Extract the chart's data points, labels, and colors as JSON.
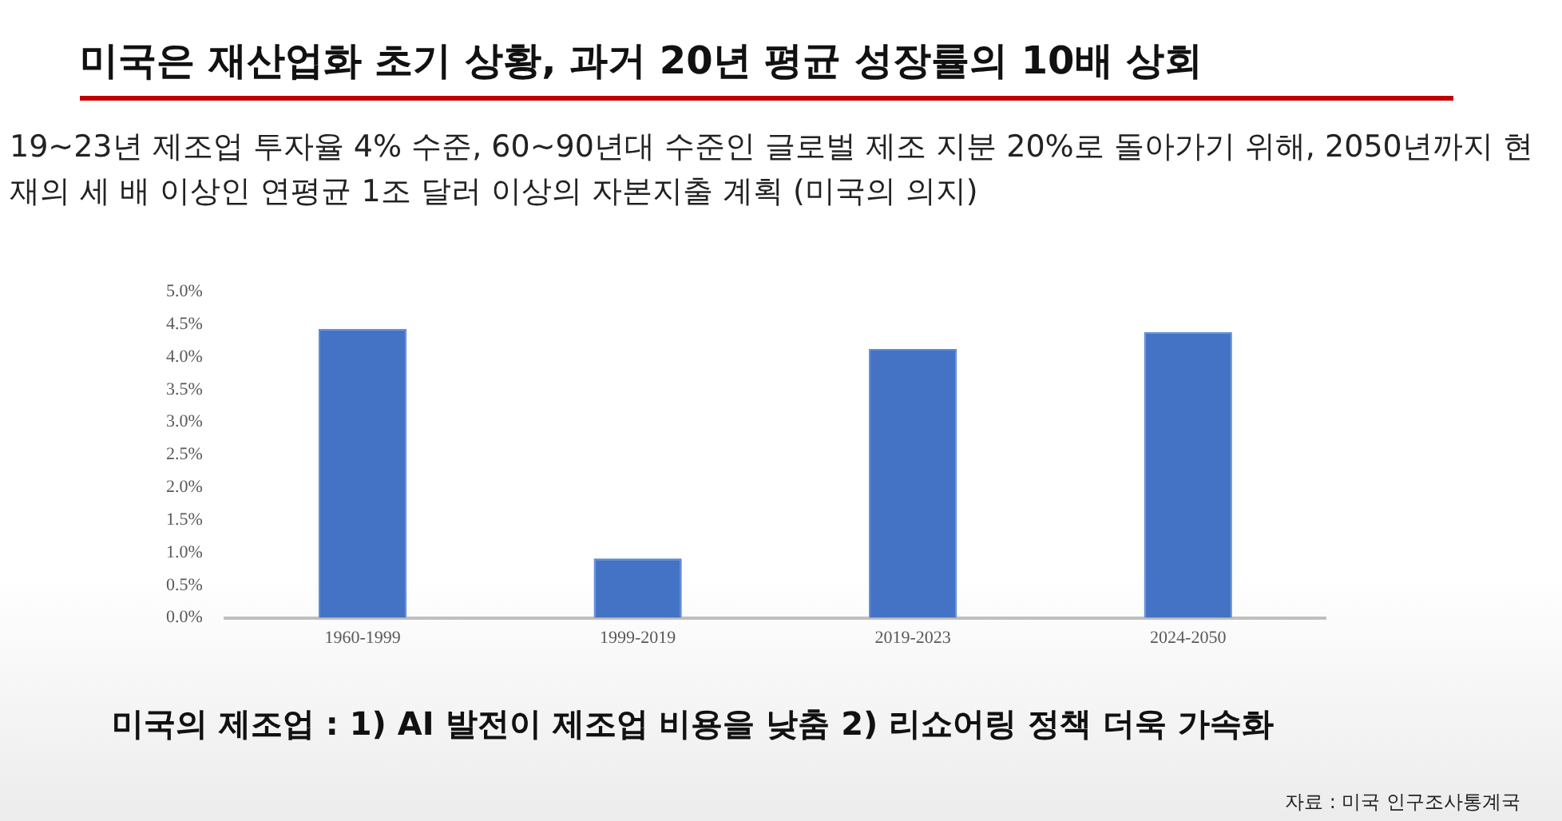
{
  "chart_data": {
    "type": "bar",
    "title": "미국은 재산업화 초기 상황,  과거 20년 평균 성장률의 10배 상회",
    "subtitle": "19~23년 제조업 투자율 4% 수준, 60~90년대 수준인 글로벌 제조 지분 20%로 돌아가기 위해, 2050년까지 현재의 세 배 이상인 연평균 1조 달러 이상의 자본지출 계획 (미국의 의지)",
    "categories": [
      "1960-1999",
      "1999-2019",
      "2019-2023",
      "2024-2050"
    ],
    "values": [
      4.43,
      0.91,
      4.12,
      4.38
    ],
    "color": "#4472c4",
    "ylim": [
      0,
      5
    ],
    "yticks": [
      {
        "value": 0,
        "label": "0.0%"
      },
      {
        "value": 0.5,
        "label": "0.5%"
      },
      {
        "value": 1,
        "label": "1.0%"
      },
      {
        "value": 1.5,
        "label": "1.5%"
      },
      {
        "value": 2,
        "label": "2.0%"
      },
      {
        "value": 2.5,
        "label": "2.5%"
      },
      {
        "value": 3,
        "label": "3.0%"
      },
      {
        "value": 3.5,
        "label": "3.5%"
      },
      {
        "value": 4,
        "label": "4.0%"
      },
      {
        "value": 4.5,
        "label": "4.5%"
      },
      {
        "value": 5,
        "label": "5.0%"
      }
    ],
    "grid": false,
    "annotations": [
      "미국의 제조업 : 1) AI 발전이 제조업 비용을 낮춤 2) 리쇼어링 정책 더욱 가속화",
      "자료 : 미국 인구조사통계국"
    ]
  }
}
